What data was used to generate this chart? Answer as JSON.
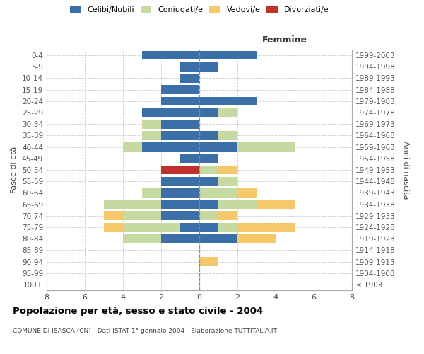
{
  "age_groups": [
    "100+",
    "95-99",
    "90-94",
    "85-89",
    "80-84",
    "75-79",
    "70-74",
    "65-69",
    "60-64",
    "55-59",
    "50-54",
    "45-49",
    "40-44",
    "35-39",
    "30-34",
    "25-29",
    "20-24",
    "15-19",
    "10-14",
    "5-9",
    "0-4"
  ],
  "birth_years": [
    "≤ 1903",
    "1904-1908",
    "1909-1913",
    "1914-1918",
    "1919-1923",
    "1924-1928",
    "1929-1933",
    "1934-1938",
    "1939-1943",
    "1944-1948",
    "1949-1953",
    "1954-1958",
    "1959-1963",
    "1964-1968",
    "1969-1973",
    "1974-1978",
    "1979-1983",
    "1984-1988",
    "1989-1993",
    "1994-1998",
    "1999-2003"
  ],
  "males_celibi": [
    0,
    0,
    0,
    0,
    2,
    1,
    2,
    2,
    2,
    2,
    0,
    1,
    3,
    2,
    2,
    3,
    2,
    2,
    1,
    1,
    3
  ],
  "males_coniugati": [
    0,
    0,
    0,
    0,
    2,
    3,
    2,
    3,
    1,
    0,
    0,
    0,
    1,
    1,
    1,
    0,
    0,
    0,
    0,
    0,
    0
  ],
  "males_vedovi": [
    0,
    0,
    0,
    0,
    0,
    1,
    1,
    0,
    0,
    0,
    0,
    0,
    0,
    0,
    0,
    0,
    0,
    0,
    0,
    0,
    0
  ],
  "males_divorziati": [
    0,
    0,
    0,
    0,
    0,
    0,
    0,
    0,
    0,
    0,
    2,
    0,
    0,
    0,
    0,
    0,
    0,
    0,
    0,
    0,
    0
  ],
  "females_nubili": [
    0,
    0,
    0,
    0,
    2,
    1,
    0,
    1,
    0,
    1,
    0,
    1,
    2,
    1,
    0,
    1,
    3,
    0,
    0,
    1,
    3
  ],
  "females_coniugate": [
    0,
    0,
    0,
    0,
    0,
    1,
    1,
    2,
    2,
    1,
    1,
    0,
    3,
    1,
    0,
    1,
    0,
    0,
    0,
    0,
    0
  ],
  "females_vedove": [
    0,
    0,
    1,
    0,
    2,
    3,
    1,
    2,
    1,
    0,
    1,
    0,
    0,
    0,
    0,
    0,
    0,
    0,
    0,
    0,
    0
  ],
  "females_divorziate": [
    0,
    0,
    0,
    0,
    0,
    0,
    0,
    0,
    0,
    0,
    0,
    0,
    0,
    0,
    0,
    0,
    0,
    0,
    0,
    0,
    0
  ],
  "color_celibi": "#3a6fa8",
  "color_coniugati": "#c5d9a0",
  "color_vedovi": "#f5c96a",
  "color_divorziati": "#c0312b",
  "xlim": 8,
  "title": "Popolazione per età, sesso e stato civile - 2004",
  "subtitle": "COMUNE DI ISASCA (CN) - Dati ISTAT 1° gennaio 2004 - Elaborazione TUTTITALIA.IT",
  "ylabel_left": "Fasce di età",
  "ylabel_right": "Anni di nascita",
  "label_femmine": "Femmine",
  "legend_labels": [
    "Celibi/Nubili",
    "Coniugati/e",
    "Vedovi/e",
    "Divorziati/e"
  ],
  "xticks": [
    -8,
    -6,
    -4,
    -2,
    0,
    2,
    4,
    6,
    8
  ]
}
